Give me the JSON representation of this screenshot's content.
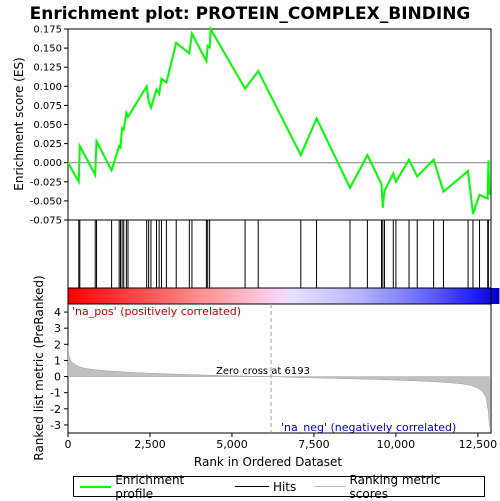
{
  "title": "Enrichment plot: PROTEIN_COMPLEX_BINDING",
  "colors": {
    "enrichment": "#00ff00",
    "hits": "#000000",
    "ranking": "#c0c0c0",
    "pos_red": "#ff0000",
    "neg_blue": "#0000ff",
    "zero_line": "#808080"
  },
  "chart_data": [
    {
      "type": "line",
      "panel": "enrichment",
      "ylabel": "Enrichment score (ES)",
      "xlim": [
        0,
        12900
      ],
      "ylim": [
        -0.075,
        0.175
      ],
      "yticks": [
        -0.075,
        -0.05,
        -0.025,
        0.0,
        0.025,
        0.05,
        0.075,
        0.1,
        0.125,
        0.15,
        0.175
      ],
      "ytick_labels": [
        "-0.075",
        "-0.050",
        "-0.025",
        "0.000",
        "0.025",
        "0.050",
        "0.075",
        "0.100",
        "0.125",
        "0.150",
        "0.175"
      ],
      "series": [
        {
          "name": "Enrichment profile",
          "x": [
            0,
            330,
            360,
            830,
            870,
            1330,
            1560,
            1600,
            1650,
            1700,
            1780,
            1830,
            2400,
            2460,
            2530,
            2700,
            2780,
            2850,
            3000,
            3300,
            3700,
            3780,
            4220,
            4260,
            4320,
            4350,
            5400,
            5800,
            7100,
            7580,
            8600,
            9130,
            9560,
            9600,
            9650,
            9920,
            10000,
            10400,
            10650,
            11150,
            11450,
            12200,
            12350,
            12550,
            12800,
            12820,
            12850
          ],
          "y": [
            0.0,
            -0.025,
            0.022,
            -0.016,
            0.028,
            -0.01,
            0.022,
            0.02,
            0.045,
            0.043,
            0.065,
            0.06,
            0.1,
            0.08,
            0.072,
            0.096,
            0.09,
            0.11,
            0.105,
            0.157,
            0.143,
            0.169,
            0.133,
            0.153,
            0.151,
            0.175,
            0.097,
            0.12,
            0.01,
            0.058,
            -0.033,
            0.01,
            -0.028,
            -0.059,
            -0.037,
            -0.014,
            -0.025,
            0.004,
            -0.018,
            0.004,
            -0.038,
            -0.011,
            -0.067,
            -0.042,
            -0.047,
            0.003,
            -0.042
          ]
        }
      ]
    },
    {
      "type": "scatter",
      "panel": "hits",
      "series": [
        {
          "name": "Hits",
          "x": [
            330,
            360,
            830,
            870,
            1330,
            1560,
            1600,
            1650,
            1700,
            1780,
            1830,
            2400,
            2460,
            2530,
            2700,
            2780,
            2850,
            3000,
            3300,
            3700,
            3780,
            4220,
            4260,
            4320,
            5400,
            5800,
            7100,
            7580,
            8600,
            9130,
            9560,
            9600,
            9650,
            9920,
            10000,
            10400,
            10650,
            11150,
            11450,
            12200,
            12350,
            12550,
            12800,
            12820
          ]
        }
      ]
    },
    {
      "type": "area",
      "panel": "ranking",
      "xlabel": "Rank in Ordered Dataset",
      "ylabel": "Ranked list metric (PreRanked)",
      "xlim": [
        0,
        12900
      ],
      "ylim": [
        -3.5,
        4.5
      ],
      "xticks": [
        0,
        2500,
        5000,
        7500,
        10000,
        12500
      ],
      "xtick_labels": [
        "0",
        "2,500",
        "5,000",
        "7,500",
        "10,000",
        "12,500"
      ],
      "yticks": [
        -3,
        -2,
        -1,
        0,
        1,
        2,
        3,
        4
      ],
      "ytick_labels": [
        "-3",
        "-2",
        "-1",
        "0",
        "1",
        "2",
        "3",
        "4"
      ],
      "series": [
        {
          "name": "Ranking metric scores",
          "x": [
            0,
            30,
            80,
            150,
            300,
            500,
            800,
            1200,
            2000,
            3000,
            4000,
            5000,
            6193,
            7000,
            8000,
            9000,
            10000,
            11000,
            11500,
            12000,
            12300,
            12500,
            12650,
            12750,
            12820,
            12850
          ],
          "y": [
            1.9,
            1.3,
            1.0,
            0.85,
            0.65,
            0.52,
            0.43,
            0.35,
            0.25,
            0.17,
            0.1,
            0.05,
            0.0,
            -0.06,
            -0.11,
            -0.16,
            -0.22,
            -0.3,
            -0.36,
            -0.45,
            -0.55,
            -0.72,
            -0.95,
            -1.3,
            -2.2,
            -3.1
          ]
        }
      ],
      "annotations": {
        "zero_cross": "Zero cross at 6193",
        "zero_cross_x": 6193,
        "pos_label": "'na_pos' (positively correlated)",
        "neg_label": "'na_neg' (negatively correlated)"
      }
    }
  ],
  "legend": {
    "items": [
      "Enrichment profile",
      "Hits",
      "Ranking metric scores"
    ]
  }
}
